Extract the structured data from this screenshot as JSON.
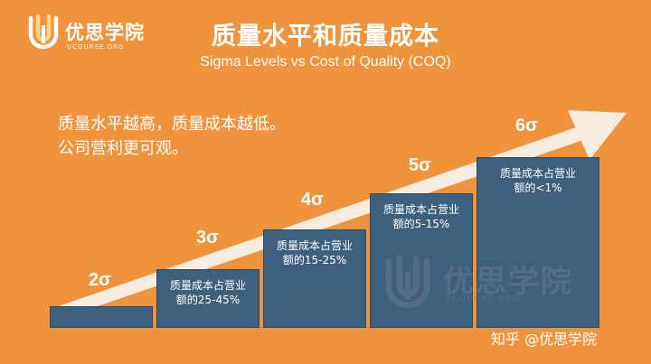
{
  "logo": {
    "name": "优思学院",
    "subtitle": "UCOURSE.ORG"
  },
  "title": "质量水平和质量成本",
  "subtitle": "Sigma Levels vs Cost of Quality (COQ)",
  "message": {
    "line1": "质量水平越高，质量成本越低。",
    "line2": "公司营利更可观。"
  },
  "steps": [
    {
      "sigma": "2σ",
      "line1": "",
      "line2": ""
    },
    {
      "sigma": "3σ",
      "line1": "质量成本占营业",
      "line2": "额的25-45%"
    },
    {
      "sigma": "4σ",
      "line1": "质量成本占营业",
      "line2": "额的15-25%"
    },
    {
      "sigma": "5σ",
      "line1": "质量成本占营业",
      "line2": "额的5-15%"
    },
    {
      "sigma": "6σ",
      "line1": "质量成本占营业",
      "line2": "额的<1%"
    }
  ],
  "watermark": {
    "name": "优思学院",
    "subtitle": "UCOURSE.ORG"
  },
  "credit": "知乎 @优思学院",
  "colors": {
    "background": "#ef943c",
    "bar": "#3e607f",
    "arrow": "#f7ece0",
    "text": "#ffffff"
  }
}
